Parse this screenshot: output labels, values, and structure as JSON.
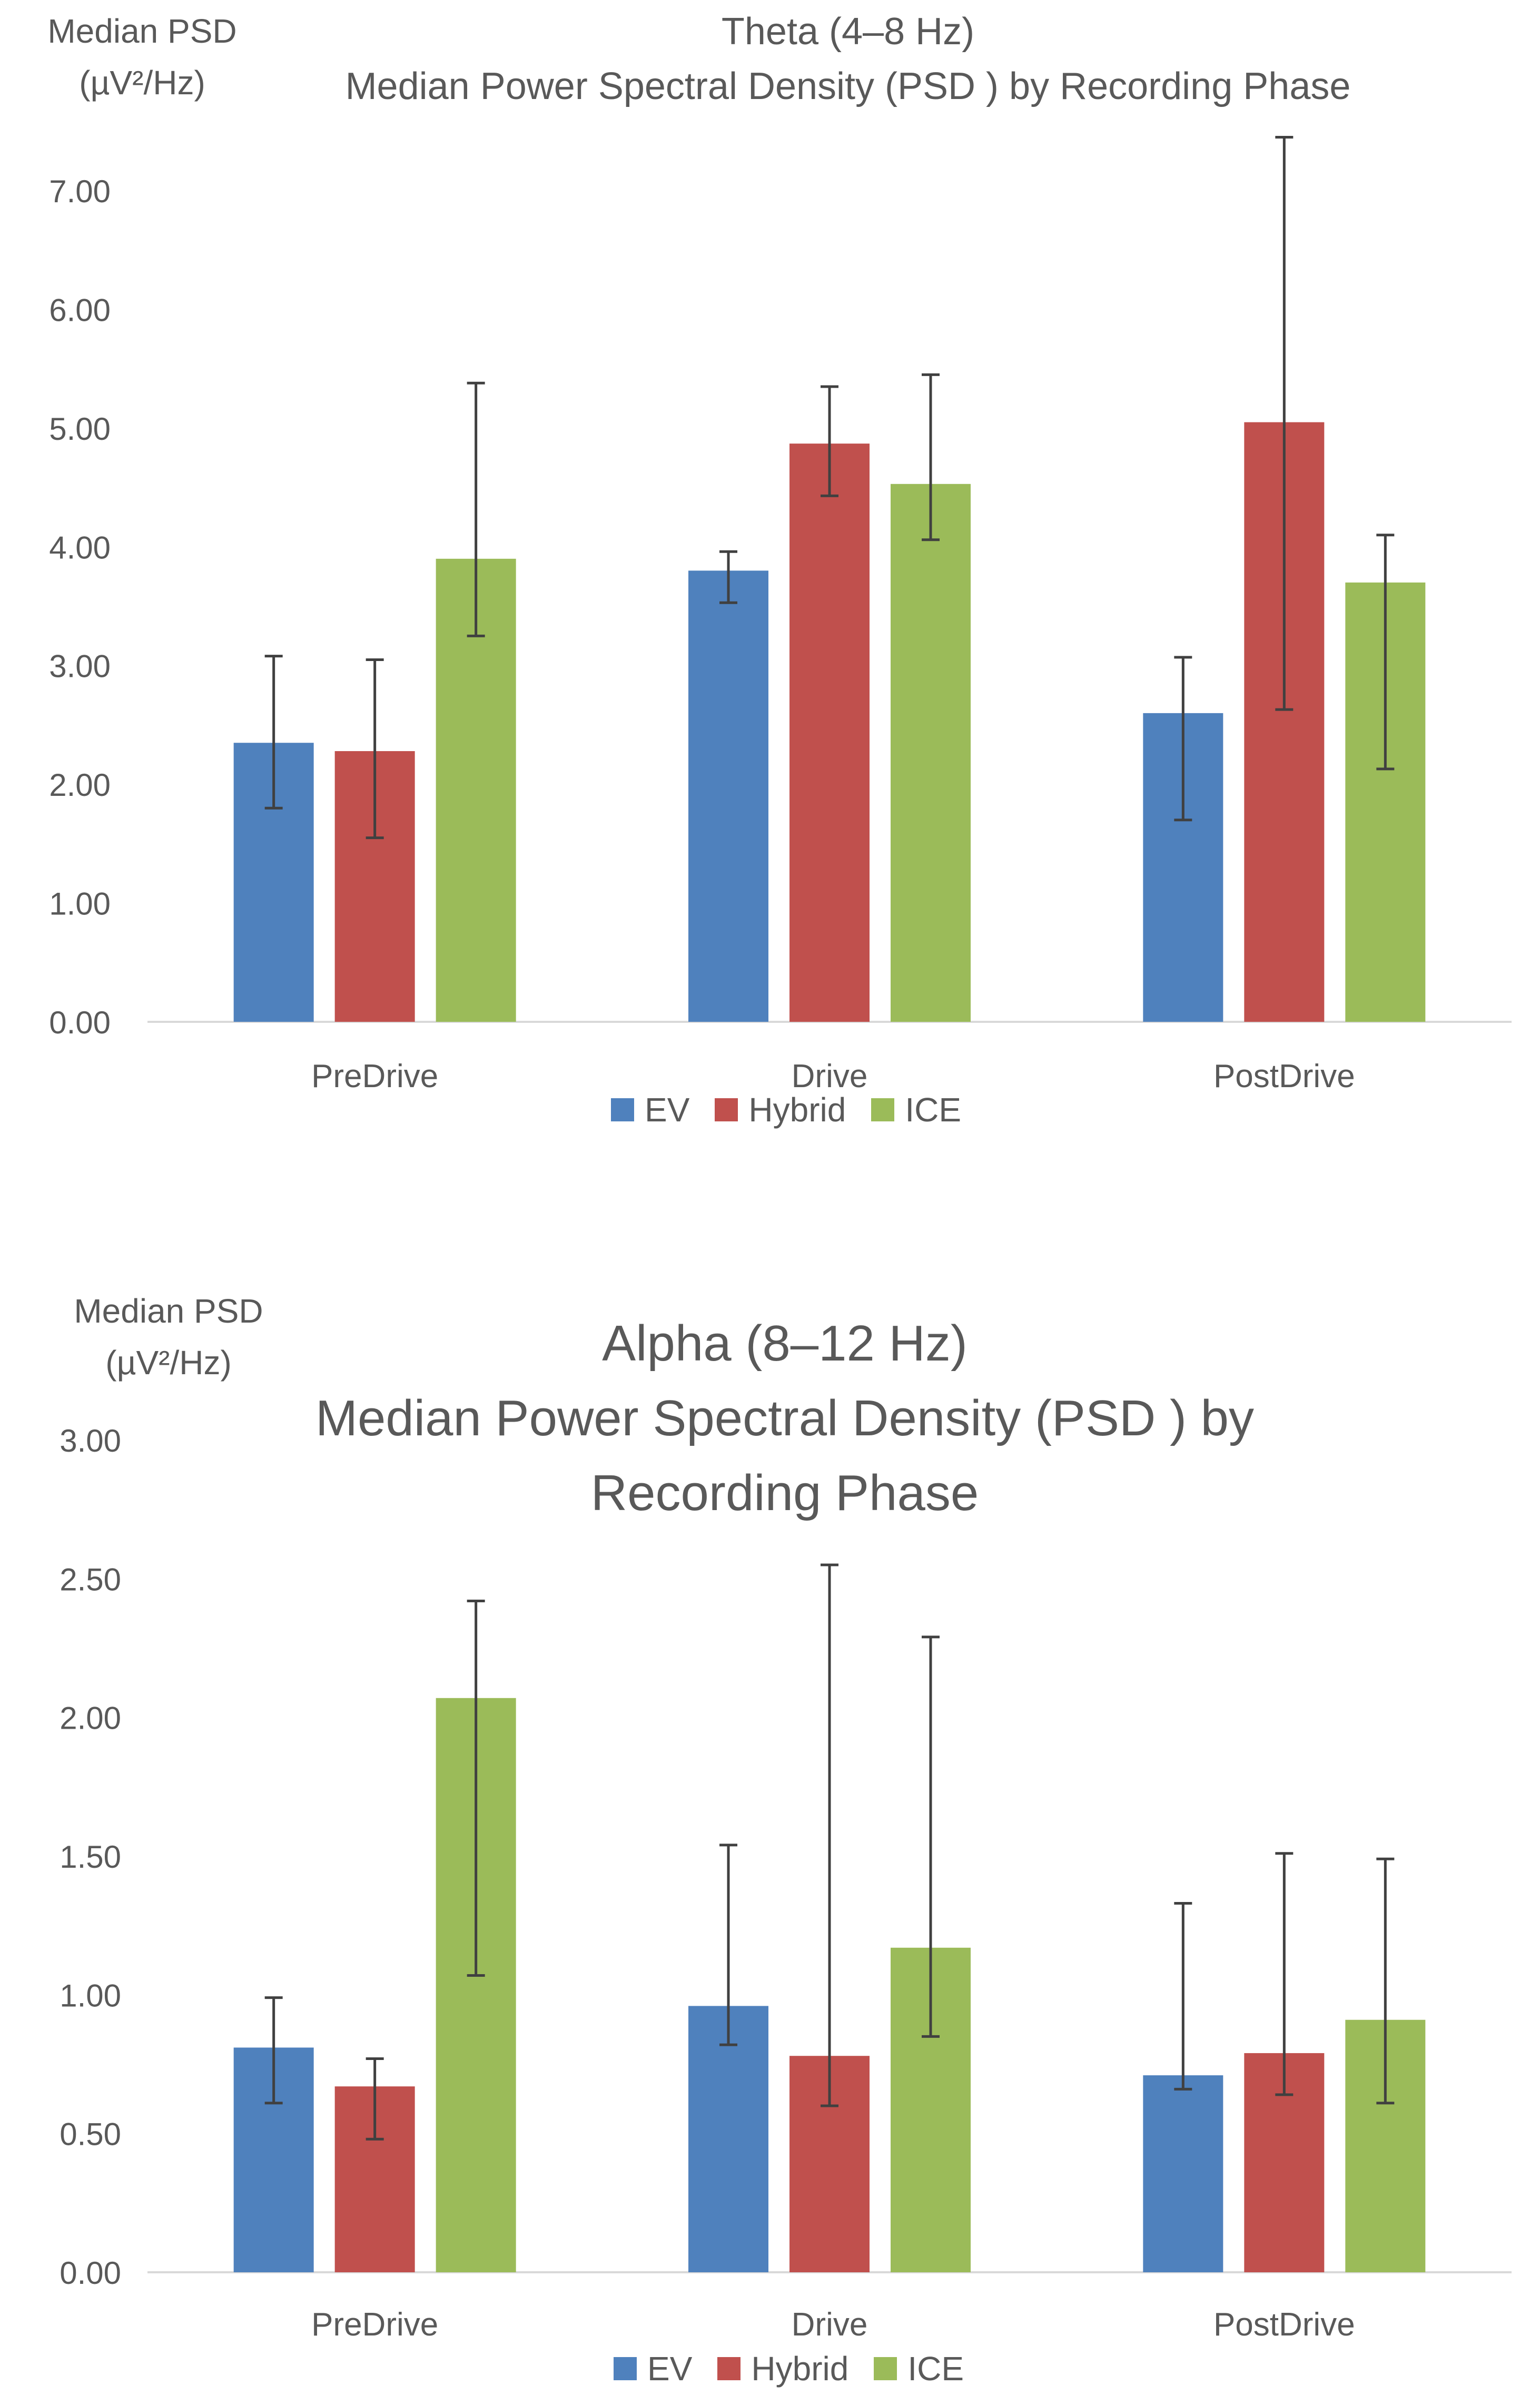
{
  "chart_data": [
    {
      "type": "bar",
      "title_line1": "Theta (4–8 Hz)",
      "title_line2": "Median Power Spectral Density (PSD ) by Recording Phase",
      "ylabel_line1": "Median PSD",
      "ylabel_line2": "(µV²/Hz)",
      "xlabel": "",
      "categories": [
        "PreDrive",
        "Drive",
        "PostDrive"
      ],
      "ylim": [
        0,
        7
      ],
      "yticks": [
        "0.00",
        "1.00",
        "2.00",
        "3.00",
        "4.00",
        "5.00",
        "6.00",
        "7.00"
      ],
      "grid": false,
      "legend_position": "bottom",
      "series": [
        {
          "name": "EV",
          "color": "#4F81BD",
          "values": [
            2.35,
            3.8,
            2.6
          ],
          "err_low": [
            1.8,
            3.53,
            1.7
          ],
          "err_high": [
            3.08,
            3.96,
            3.07
          ]
        },
        {
          "name": "Hybrid",
          "color": "#C0504D",
          "values": [
            2.28,
            4.87,
            5.05
          ],
          "err_low": [
            1.55,
            4.43,
            2.63
          ],
          "err_high": [
            3.05,
            5.35,
            7.45
          ]
        },
        {
          "name": "ICE",
          "color": "#9BBB59",
          "values": [
            3.9,
            4.53,
            3.7
          ],
          "err_low": [
            3.25,
            4.06,
            2.13
          ],
          "err_high": [
            5.38,
            5.45,
            4.1
          ]
        }
      ]
    },
    {
      "type": "bar",
      "title_line1": "Alpha (8–12 Hz)",
      "title_line2": "Median Power Spectral Density (PSD ) by",
      "title_line3": "Recording Phase",
      "ylabel_line1": "Median PSD",
      "ylabel_line2": "(µV²/Hz)",
      "xlabel": "",
      "categories": [
        "PreDrive",
        "Drive",
        "PostDrive"
      ],
      "ylim": [
        0,
        3
      ],
      "yticks": [
        "0.00",
        "0.50",
        "1.00",
        "1.50",
        "2.00",
        "2.50",
        "3.00"
      ],
      "grid": false,
      "legend_position": "bottom",
      "series": [
        {
          "name": "EV",
          "color": "#4F81BD",
          "values": [
            0.81,
            0.96,
            0.71
          ],
          "err_low": [
            0.61,
            0.82,
            0.66
          ],
          "err_high": [
            0.99,
            1.54,
            1.33
          ]
        },
        {
          "name": "Hybrid",
          "color": "#C0504D",
          "values": [
            0.67,
            0.78,
            0.79
          ],
          "err_low": [
            0.48,
            0.6,
            0.64
          ],
          "err_high": [
            0.77,
            2.55,
            1.51
          ]
        },
        {
          "name": "ICE",
          "color": "#9BBB59",
          "values": [
            2.07,
            1.17,
            0.91
          ],
          "err_low": [
            1.07,
            0.85,
            0.61
          ],
          "err_high": [
            2.42,
            2.29,
            1.49
          ]
        }
      ]
    }
  ]
}
